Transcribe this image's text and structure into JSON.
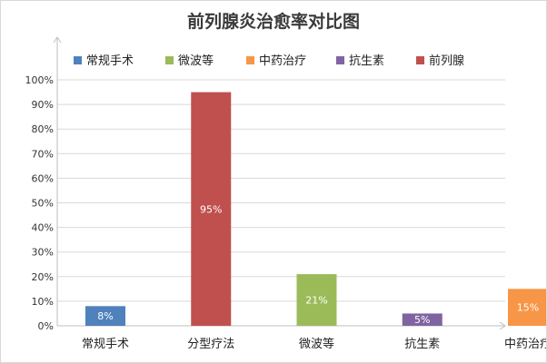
{
  "chart_data": {
    "type": "bar",
    "title": "前列腺炎治愈率对比图",
    "categories": [
      "常规手术",
      "分型疗法",
      "微波等",
      "抗生素",
      "中药治疗"
    ],
    "values": [
      8,
      95,
      21,
      5,
      15
    ],
    "value_labels": [
      "8%",
      "95%",
      "21%",
      "5%",
      "15%"
    ],
    "bar_colors": [
      "#4f81bd",
      "#c0504d",
      "#9bbb59",
      "#8064a2",
      "#f79646"
    ],
    "category_label_colors": [
      "#222222",
      "#c0504d",
      "#222222",
      "#222222",
      "#222222"
    ],
    "ylim": [
      0,
      100
    ],
    "yticks": [
      "0%",
      "10%",
      "20%",
      "30%",
      "40%",
      "50%",
      "60%",
      "70%",
      "80%",
      "90%",
      "100%"
    ],
    "grid": true,
    "legend_position": "top",
    "legend": [
      {
        "label": "常规手术",
        "color": "#4f81bd"
      },
      {
        "label": "微波等",
        "color": "#9bbb59"
      },
      {
        "label": "中药治疗",
        "color": "#f79646"
      },
      {
        "label": "抗生素",
        "color": "#8064a2"
      },
      {
        "label": "前列腺",
        "color": "#c0504d"
      }
    ]
  }
}
